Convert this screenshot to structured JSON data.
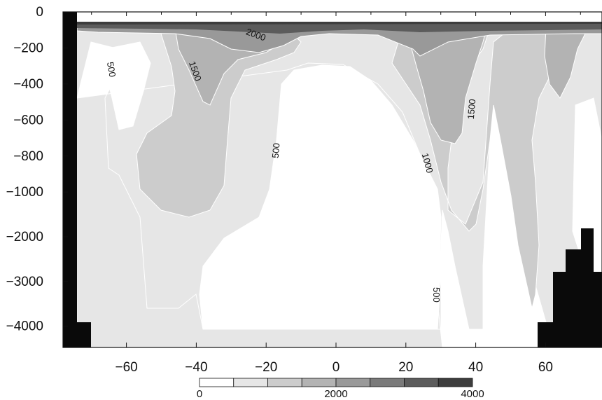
{
  "chart_data": {
    "type": "heatmap",
    "title": "",
    "xlabel": "",
    "ylabel": "",
    "xlim": [
      -76,
      76
    ],
    "x_ticks": [
      -60,
      -40,
      -20,
      0,
      20,
      40,
      60
    ],
    "x_tick_labels": [
      "−60",
      "−40",
      "−20",
      "0",
      "20",
      "40",
      "60"
    ],
    "y_ticks": [
      0,
      -200,
      -400,
      -600,
      -800,
      -1000,
      -2000,
      -3000,
      -4000
    ],
    "y_tick_labels": [
      "0",
      "−200",
      "−400",
      "−600",
      "−800",
      "−1000",
      "−2000",
      "−3000",
      "−4000"
    ],
    "y_axis_note": "piecewise depth scale: 0 to -1000 expanded, -1000 to -4500 compressed",
    "contour_levels": [
      0,
      500,
      1000,
      1500,
      2000,
      2500,
      3000,
      3500,
      4000
    ],
    "fill_colors": [
      "#ffffff",
      "#e6e6e6",
      "#cccccc",
      "#b3b3b3",
      "#999999",
      "#7a7a7a",
      "#5c5c5c",
      "#3d3d3d"
    ],
    "land_color": "#0a0a0a",
    "contour_labels": [
      {
        "text": "2000",
        "x": -23,
        "y": -130,
        "rotate": 20
      },
      {
        "text": "500",
        "x": -64.5,
        "y": -320,
        "rotate": 80
      },
      {
        "text": "1500",
        "x": -40.5,
        "y": -330,
        "rotate": 70
      },
      {
        "text": "500",
        "x": -17,
        "y": -770,
        "rotate": -85
      },
      {
        "text": "1000",
        "x": 26,
        "y": -840,
        "rotate": 75
      },
      {
        "text": "1500",
        "x": 39,
        "y": -540,
        "rotate": -85
      },
      {
        "text": "500",
        "x": 28.5,
        "y": -3300,
        "rotate": 90
      }
    ],
    "colorbar": {
      "min": 0,
      "max": 4000,
      "bins": 8,
      "tick_labels": [
        "0",
        "2000",
        "4000"
      ]
    }
  }
}
